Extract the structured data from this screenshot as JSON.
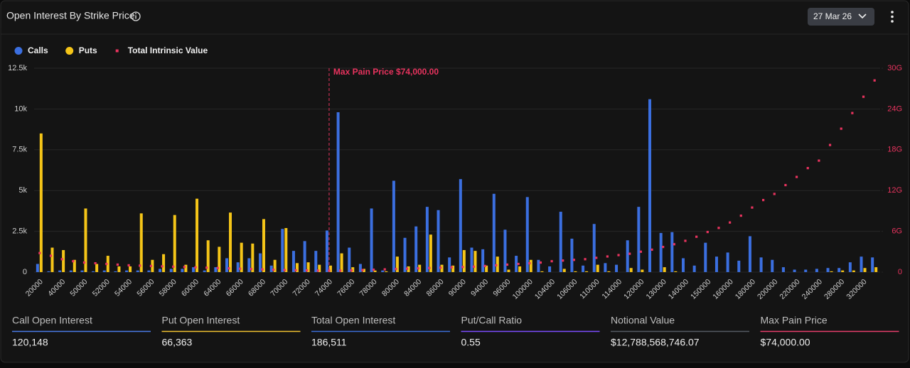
{
  "header": {
    "title": "Open Interest By Strike Price",
    "date": "27 Mar 26"
  },
  "chart_data": {
    "type": "bar",
    "categories": [
      "20000",
      null,
      "40000",
      null,
      "50000",
      null,
      "52000",
      null,
      "54000",
      null,
      "56000",
      null,
      "58000",
      null,
      "60000",
      null,
      "64000",
      null,
      "66000",
      null,
      "68000",
      null,
      "70000",
      null,
      "72000",
      null,
      "74000",
      null,
      "76000",
      null,
      "78000",
      null,
      "80000",
      null,
      "84000",
      null,
      "86000",
      null,
      "90000",
      null,
      "94000",
      null,
      "96000",
      null,
      "100000",
      null,
      "104000",
      null,
      "106000",
      null,
      "110000",
      null,
      "114000",
      null,
      "120000",
      null,
      "130000",
      null,
      "140000",
      null,
      "150000",
      null,
      "160000",
      null,
      "180000",
      null,
      "200000",
      null,
      "220000",
      null,
      "240000",
      null,
      "280000",
      null,
      "320000",
      null
    ],
    "series": [
      {
        "name": "Calls",
        "color": "#3b6fe0",
        "values": [
          500,
          50,
          100,
          100,
          100,
          50,
          100,
          50,
          100,
          100,
          100,
          200,
          200,
          200,
          300,
          100,
          300,
          850,
          600,
          850,
          1150,
          400,
          2650,
          1300,
          1900,
          1300,
          2550,
          9800,
          1500,
          500,
          3900,
          100,
          5600,
          2100,
          2800,
          4000,
          3800,
          900,
          5700,
          1500,
          1400,
          4800,
          2600,
          1000,
          4600,
          750,
          350,
          3700,
          2050,
          400,
          2950,
          550,
          450,
          1950,
          4000,
          10600,
          2400,
          2450,
          850,
          400,
          1800,
          950,
          1200,
          700,
          2200,
          900,
          750,
          300,
          150,
          150,
          200,
          250,
          250,
          600,
          950,
          900
        ]
      },
      {
        "name": "Puts",
        "color": "#f5c518",
        "values": [
          8500,
          1500,
          1350,
          750,
          3900,
          500,
          1000,
          350,
          350,
          3600,
          750,
          1100,
          3500,
          450,
          4500,
          1950,
          1550,
          3650,
          1800,
          1750,
          3250,
          750,
          2700,
          550,
          600,
          450,
          400,
          1150,
          300,
          200,
          100,
          50,
          950,
          350,
          450,
          2300,
          450,
          400,
          1350,
          1300,
          400,
          950,
          150,
          350,
          750,
          50,
          0,
          200,
          50,
          50,
          450,
          50,
          0,
          250,
          150,
          0,
          300,
          50,
          0,
          0,
          0,
          0,
          0,
          0,
          0,
          0,
          0,
          0,
          0,
          0,
          0,
          50,
          100,
          100,
          250,
          300
        ]
      },
      {
        "name": "Total Intrinsic Value",
        "color": "#e8335e",
        "axis": "y2",
        "values": [
          2800000000,
          2400000000,
          1900000000,
          1600000000,
          1400000000,
          1300000000,
          1200000000,
          1100000000,
          1000000000,
          950000000,
          900000000,
          850000000,
          800000000,
          750000000,
          700000000,
          650000000,
          600000000,
          550000000,
          500000000,
          450000000,
          400000000,
          350000000,
          300000000,
          280000000,
          250000000,
          220000000,
          200000000,
          220000000,
          250000000,
          300000000,
          350000000,
          400000000,
          450000000,
          500000000,
          550000000,
          600000000,
          650000000,
          700000000,
          750000000,
          800000000,
          900000000,
          1000000000,
          1100000000,
          1200000000,
          1300000000,
          1400000000,
          1600000000,
          1700000000,
          1800000000,
          1900000000,
          2100000000,
          2300000000,
          2500000000,
          2700000000,
          3000000000,
          3300000000,
          3700000000,
          4100000000,
          4600000000,
          5200000000,
          5900000000,
          6500000000,
          7300000000,
          8300000000,
          9500000000,
          10600000000,
          11500000000,
          12800000000,
          14000000000,
          15300000000,
          16400000000,
          18700000000,
          21100000000,
          23400000000,
          25800000000,
          28200000000
        ]
      }
    ],
    "ylim": [
      0,
      12500
    ],
    "yticks": [
      0,
      {
        "value": 2500,
        "label": "2.5k"
      },
      {
        "value": 5000,
        "label": "5k"
      },
      {
        "value": 7500,
        "label": "7.5k"
      },
      {
        "value": 10000,
        "label": "10k"
      },
      {
        "value": 12500,
        "label": "12.5k"
      }
    ],
    "y2lim": [
      0,
      30000000000
    ],
    "y2ticks": [
      0,
      {
        "value": 6000000000,
        "label": "6G"
      },
      {
        "value": 12000000000,
        "label": "12G"
      },
      {
        "value": 18000000000,
        "label": "18G"
      },
      {
        "value": 24000000000,
        "label": "24G"
      },
      {
        "value": 30000000000,
        "label": "30G"
      }
    ],
    "grid": true,
    "legend": "top-left",
    "annotations": [
      {
        "text": "Max Pain Price $74,000.00",
        "x": "74000",
        "color": "#e8335e"
      }
    ]
  },
  "stats": [
    {
      "label": "Call Open Interest",
      "value": "120,148",
      "color": "#4a7be8"
    },
    {
      "label": "Put Open Interest",
      "value": "66,363",
      "color": "#f2c230"
    },
    {
      "label": "Total Open Interest",
      "value": "186,511",
      "color": "#3c6fd8"
    },
    {
      "label": "Put/Call Ratio",
      "value": "0.55",
      "color": "#7c4dff"
    },
    {
      "label": "Notional Value",
      "value": "$12,788,568,746.07",
      "color": "#555a63"
    },
    {
      "label": "Max Pain Price",
      "value": "$74,000.00",
      "color": "#e83e6c"
    }
  ]
}
